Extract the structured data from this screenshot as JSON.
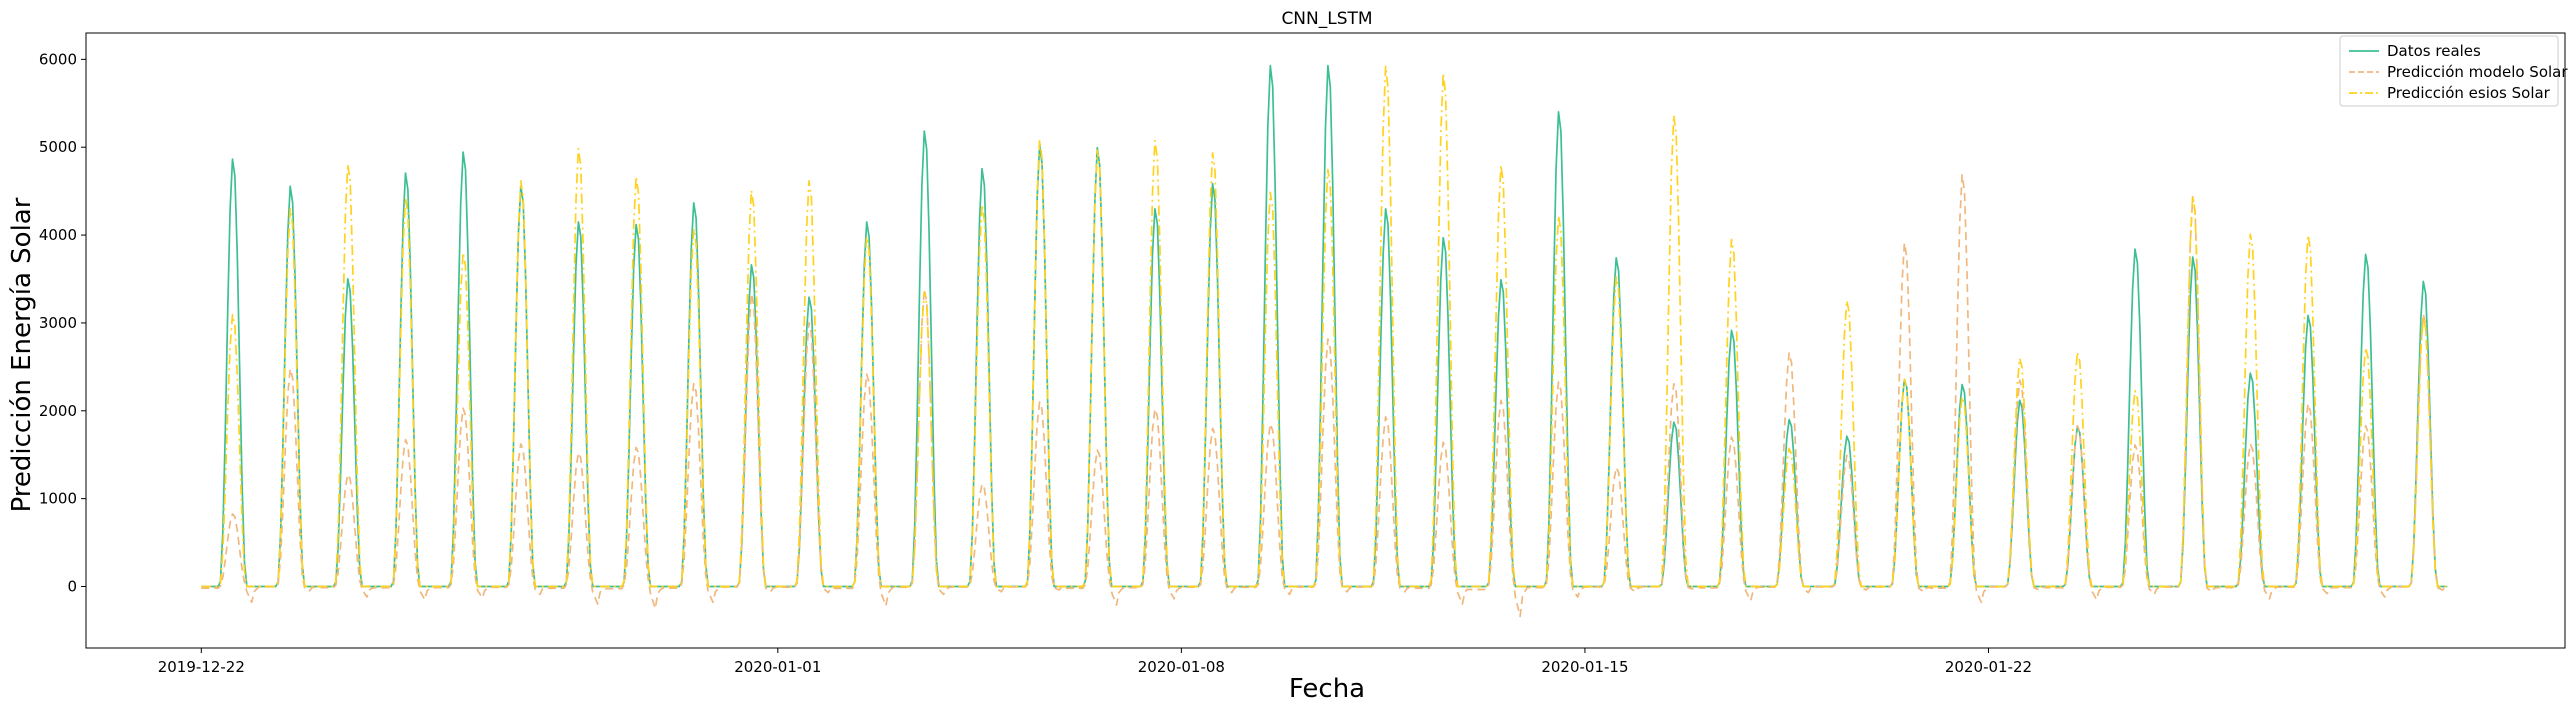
{
  "chart_data": {
    "type": "line",
    "title": "CNN_LSTM",
    "xlabel": "Fecha",
    "ylabel": "Predicción Energía Solar",
    "xlim": [
      "2019-12-20",
      "2020-02-01"
    ],
    "ylim": [
      -700,
      6300
    ],
    "x_ticks": [
      "2019-12-22",
      "2020-01-01",
      "2020-01-08",
      "2020-01-15",
      "2020-01-22"
    ],
    "y_ticks": [
      0,
      1000,
      2000,
      3000,
      4000,
      5000,
      6000
    ],
    "legend_position": "top-right",
    "grid": false,
    "day_start": "2019-12-22",
    "series": [
      {
        "name": "Datos reales",
        "color": "#3dbf95",
        "style": "solid",
        "daily_peaks": [
          4890,
          4580,
          3520,
          4730,
          4970,
          4580,
          4170,
          4140,
          4390,
          3680,
          3310,
          4170,
          5210,
          4780,
          5050,
          5020,
          4320,
          4610,
          5960,
          5960,
          4320,
          3990,
          3510,
          5430,
          3760,
          1880,
          2930,
          1910,
          1720,
          2370,
          2310,
          2130,
          1830,
          3860,
          3770,
          2440,
          3100,
          3800,
          3490
        ]
      },
      {
        "name": "Predicción modelo Solar",
        "color": "#f0b87e",
        "style": "dashed",
        "daily_peaks": [
          830,
          2490,
          1280,
          1680,
          2040,
          1630,
          1530,
          1590,
          2320,
          3350,
          3020,
          2430,
          3400,
          1170,
          2110,
          1560,
          2030,
          1810,
          1860,
          2830,
          1940,
          1650,
          2130,
          2340,
          1360,
          2320,
          1710,
          2670,
          1500,
          3930,
          4710,
          2360,
          1840,
          1620,
          4460,
          1630,
          2090,
          1840,
          3120
        ],
        "night_min": [
          -180,
          -50,
          -120,
          -150,
          -130,
          -90,
          -200,
          -250,
          -180,
          -60,
          -70,
          -220,
          -90,
          -60,
          -40,
          -210,
          -140,
          -70,
          -90,
          -60,
          -60,
          -200,
          -340,
          -120,
          -60,
          -30,
          -160,
          -70,
          -40,
          -60,
          -180,
          -40,
          -150,
          -90,
          -60,
          -140,
          -80,
          -120,
          -40
        ]
      },
      {
        "name": "Predicción esios Solar",
        "color": "#ffd21f",
        "style": "dashdot",
        "daily_peaks": [
          3110,
          4320,
          4830,
          4440,
          3820,
          4640,
          5010,
          4690,
          4090,
          4530,
          4640,
          4000,
          3370,
          4370,
          5110,
          4990,
          5100,
          4960,
          4510,
          4770,
          5950,
          5870,
          4820,
          4240,
          3540,
          5390,
          3970,
          1580,
          3270,
          2370,
          2170,
          2610,
          2680,
          2240,
          4470,
          4030,
          4020,
          2730,
          3080
        ]
      }
    ]
  }
}
